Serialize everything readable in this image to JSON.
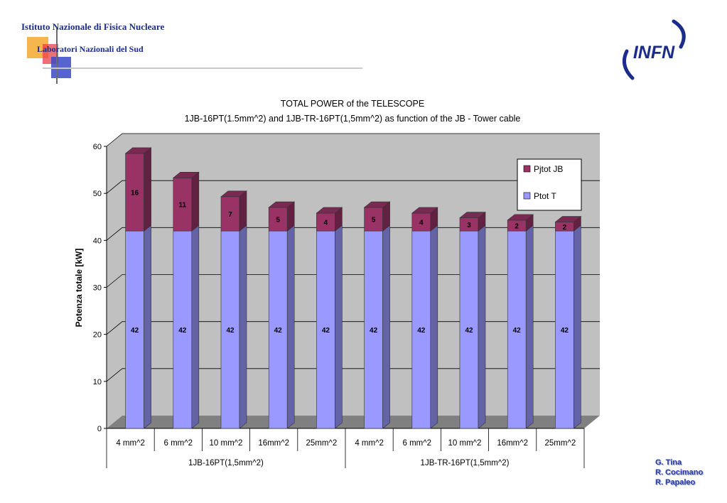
{
  "header": {
    "institute_line1": "Istituto Nazionale di Fisica Nucleare",
    "institute_line2": "Laboratori Nazionali del Sud",
    "infn_logo_text": "INFN"
  },
  "credits": [
    "G. Tina",
    "R. Cocimano",
    "R. Papaleo"
  ],
  "colors": {
    "series_pjtot": "#993366",
    "series_ptot": "#9999ff",
    "plot_background": "#c0c0c0",
    "logo_blue": "#1b2c8c"
  },
  "chart_data": {
    "type": "bar",
    "stacked": true,
    "three_d": true,
    "title": "TOTAL POWER of the TELESCOPE",
    "subtitle": "1JB-16PT(1.5mm^2) and 1JB-TR-16PT(1,5mm^2) as function of the JB - Tower cable",
    "ylabel": "Potenza totale [kW]",
    "xlabel": "",
    "ylim": [
      0,
      60
    ],
    "yticks": [
      0,
      10,
      20,
      30,
      40,
      50,
      60
    ],
    "grid": true,
    "legend_position": "top-right",
    "categories": [
      "4 mm^2",
      "6 mm^2",
      "10 mm^2",
      "16mm^2",
      "25mm^2",
      "4 mm^2",
      "6 mm^2",
      "10 mm^2",
      "16mm^2",
      "25mm^2"
    ],
    "groups": [
      {
        "label": "1JB-16PT(1,5mm^2)",
        "count": 5
      },
      {
        "label": "1JB-TR-16PT(1,5mm^2)",
        "count": 5
      }
    ],
    "series": [
      {
        "name": "Ptot T",
        "color": "#9999ff",
        "values": [
          42,
          42,
          42,
          42,
          42,
          42,
          42,
          42,
          42,
          42
        ],
        "labels": [
          "42",
          "42",
          "42",
          "42",
          "42",
          "42",
          "42",
          "42",
          "42",
          "42"
        ]
      },
      {
        "name": "Pjtot JB",
        "color": "#993366",
        "values": [
          16.5,
          11.3,
          7.3,
          5.0,
          3.8,
          5.0,
          3.8,
          2.8,
          2.3,
          1.9
        ],
        "labels": [
          "16",
          "11",
          "7",
          "5",
          "4",
          "5",
          "4",
          "3",
          "2",
          "2"
        ]
      }
    ],
    "legend_order": [
      "Pjtot JB",
      "Ptot T"
    ]
  }
}
